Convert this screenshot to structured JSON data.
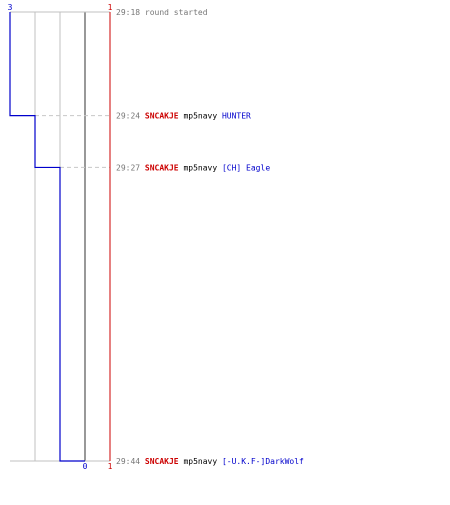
{
  "colors": {
    "team_blue": "#0000cc",
    "team_red": "#cc0000",
    "time": "#777777",
    "weapon": "#000000",
    "grid": "#c0c0c0",
    "divider": "#555555",
    "event_line": "#c8c8c8"
  },
  "chart_data": {
    "type": "line",
    "series": [
      {
        "team": "blue",
        "values": [
          3,
          2,
          1,
          0
        ],
        "count_labels": {
          "start": "3",
          "end": "0"
        }
      },
      {
        "team": "red",
        "values": [
          1,
          1,
          1,
          1
        ],
        "count_labels": {
          "start": "1",
          "end": "1"
        }
      }
    ],
    "events": [
      {
        "time": "29:18",
        "text": "round started"
      },
      {
        "time": "29:24",
        "killer": "SNCAKJE",
        "weapon": "mp5navy",
        "victim": "HUNTER"
      },
      {
        "time": "29:27",
        "killer": "SNCAKJE",
        "weapon": "mp5navy",
        "victim": "[CH] Eagle"
      },
      {
        "time": "29:44",
        "killer": "SNCAKJE",
        "weapon": "mp5navy",
        "victim": "[-U.K.F-]DarkWolf"
      }
    ]
  }
}
